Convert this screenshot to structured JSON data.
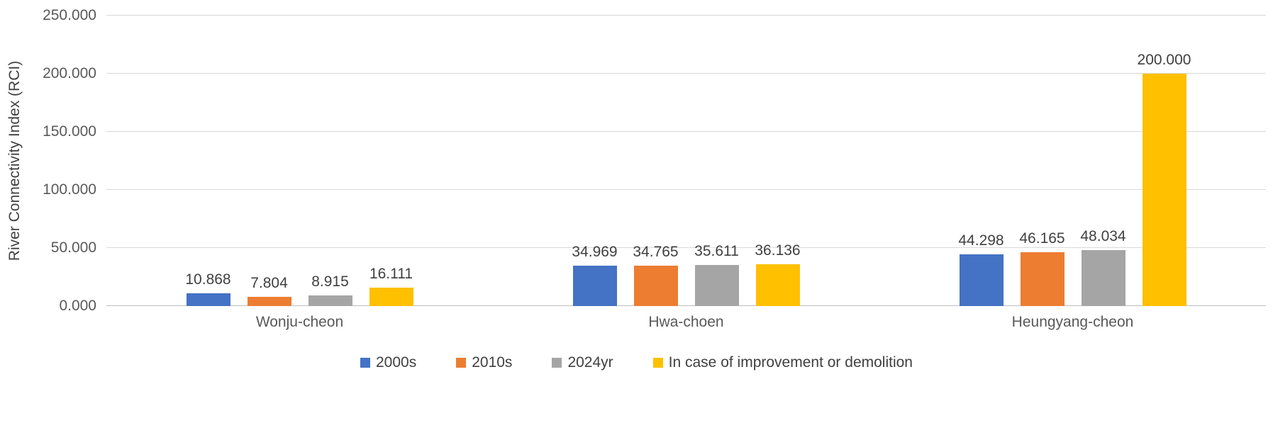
{
  "chart_data": {
    "type": "bar",
    "title": "",
    "xlabel": "",
    "ylabel": "River Connectivity Index (RCI)",
    "categories": [
      "Wonju-cheon",
      "Hwa-choen",
      "Heungyang-cheon"
    ],
    "series": [
      {
        "name": "2000s",
        "color": "#4472C4",
        "values": [
          10.868,
          34.969,
          44.298
        ]
      },
      {
        "name": "2010s",
        "color": "#ED7D31",
        "values": [
          7.804,
          34.765,
          46.165
        ]
      },
      {
        "name": "2024yr",
        "color": "#A5A5A5",
        "values": [
          8.915,
          35.611,
          48.034
        ]
      },
      {
        "name": "In case of improvement or demolition",
        "color": "#FFC000",
        "values": [
          16.111,
          36.136,
          200.0
        ]
      }
    ],
    "ylim": [
      0,
      250
    ],
    "ytick_step": 50,
    "value_label_decimals": 3,
    "grid": true,
    "legend_position": "bottom",
    "background_color": "#FFFFFF",
    "gridline_color": "#D9D9D9"
  }
}
